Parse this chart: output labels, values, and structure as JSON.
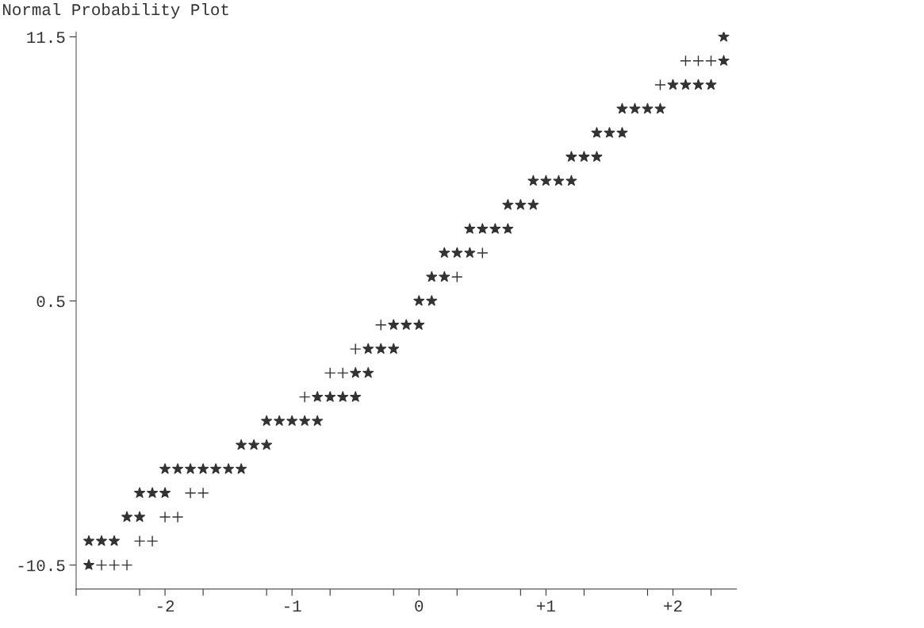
{
  "chart_data": {
    "type": "scatter",
    "title": "Normal Probability Plot",
    "series": [
      {
        "color": "#333333",
        "marker": "star",
        "x": [
          2.4,
          2.4,
          2.0,
          2.1,
          2.2,
          2.3,
          1.6,
          1.7,
          1.8,
          1.9,
          1.4,
          1.5,
          1.6,
          1.2,
          1.3,
          1.4,
          0.9,
          1.0,
          1.1,
          1.2,
          0.7,
          0.8,
          0.9,
          0.4,
          0.5,
          0.6,
          0.7,
          0.2,
          0.3,
          0.4,
          0.1,
          0.2,
          0.0,
          0.1,
          -0.2,
          -0.1,
          0.0,
          -0.4,
          -0.3,
          -0.2,
          -0.5,
          -0.4,
          -0.8,
          -0.7,
          -0.6,
          -0.5,
          -1.2,
          -1.1,
          -1.0,
          -0.9,
          -0.8,
          -1.4,
          -1.3,
          -1.2,
          -2.0,
          -1.9,
          -1.8,
          -1.7,
          -1.6,
          -1.5,
          -1.4,
          -2.2,
          -2.1,
          -2.0,
          -2.3,
          -2.2,
          -2.6,
          -2.5,
          -2.4,
          -2.6
        ],
        "values": [
          11.5,
          10.5,
          9.5,
          9.5,
          9.5,
          9.5,
          8.5,
          8.5,
          8.5,
          8.5,
          7.5,
          7.5,
          7.5,
          6.5,
          6.5,
          6.5,
          5.5,
          5.5,
          5.5,
          5.5,
          4.5,
          4.5,
          4.5,
          3.5,
          3.5,
          3.5,
          3.5,
          2.5,
          2.5,
          2.5,
          1.5,
          1.5,
          0.5,
          0.5,
          -0.5,
          -0.5,
          -0.5,
          -1.5,
          -1.5,
          -1.5,
          -2.5,
          -2.5,
          -3.5,
          -3.5,
          -3.5,
          -3.5,
          -4.5,
          -4.5,
          -4.5,
          -4.5,
          -4.5,
          -5.5,
          -5.5,
          -5.5,
          -6.5,
          -6.5,
          -6.5,
          -6.5,
          -6.5,
          -6.5,
          -6.5,
          -7.5,
          -7.5,
          -7.5,
          -8.5,
          -8.5,
          -9.5,
          -9.5,
          -9.5,
          -10.5
        ]
      },
      {
        "color": "#333333",
        "marker": "cross",
        "x": [
          2.1,
          2.2,
          2.3,
          1.9,
          0.5,
          0.3,
          -0.3,
          -0.5,
          -0.7,
          -0.6,
          -0.9,
          -1.8,
          -1.7,
          -2.0,
          -1.9,
          -2.2,
          -2.1,
          -2.5,
          -2.4,
          -2.3
        ],
        "values": [
          10.5,
          10.5,
          10.5,
          9.5,
          2.5,
          1.5,
          -0.5,
          -1.5,
          -2.5,
          -2.5,
          -3.5,
          -7.5,
          -7.5,
          -8.5,
          -8.5,
          -9.5,
          -9.5,
          -10.5,
          -10.5,
          -10.5
        ]
      }
    ],
    "xlim": [
      -2.7,
      2.5
    ],
    "xticks": [
      {
        "value": -2.7,
        "label": null
      },
      {
        "value": -2.2,
        "label": null
      },
      {
        "value": -2,
        "label": "-2"
      },
      {
        "value": -1.7,
        "label": null
      },
      {
        "value": -1.2,
        "label": null
      },
      {
        "value": -1,
        "label": "-1"
      },
      {
        "value": -0.7,
        "label": null
      },
      {
        "value": -0.2,
        "label": null
      },
      0,
      {
        "value": 0.3,
        "label": null
      },
      {
        "value": 0.8,
        "label": null
      },
      {
        "value": 1,
        "label": "+1"
      },
      {
        "value": 1.3,
        "label": null
      },
      {
        "value": 1.8,
        "label": null
      },
      {
        "value": 2,
        "label": "+2"
      },
      {
        "value": 2.3,
        "label": null
      }
    ],
    "ylim": [
      -11.5,
      11.7
    ],
    "yticks": [
      -10.5,
      0.5,
      11.5
    ],
    "grid": false,
    "legend": false
  }
}
